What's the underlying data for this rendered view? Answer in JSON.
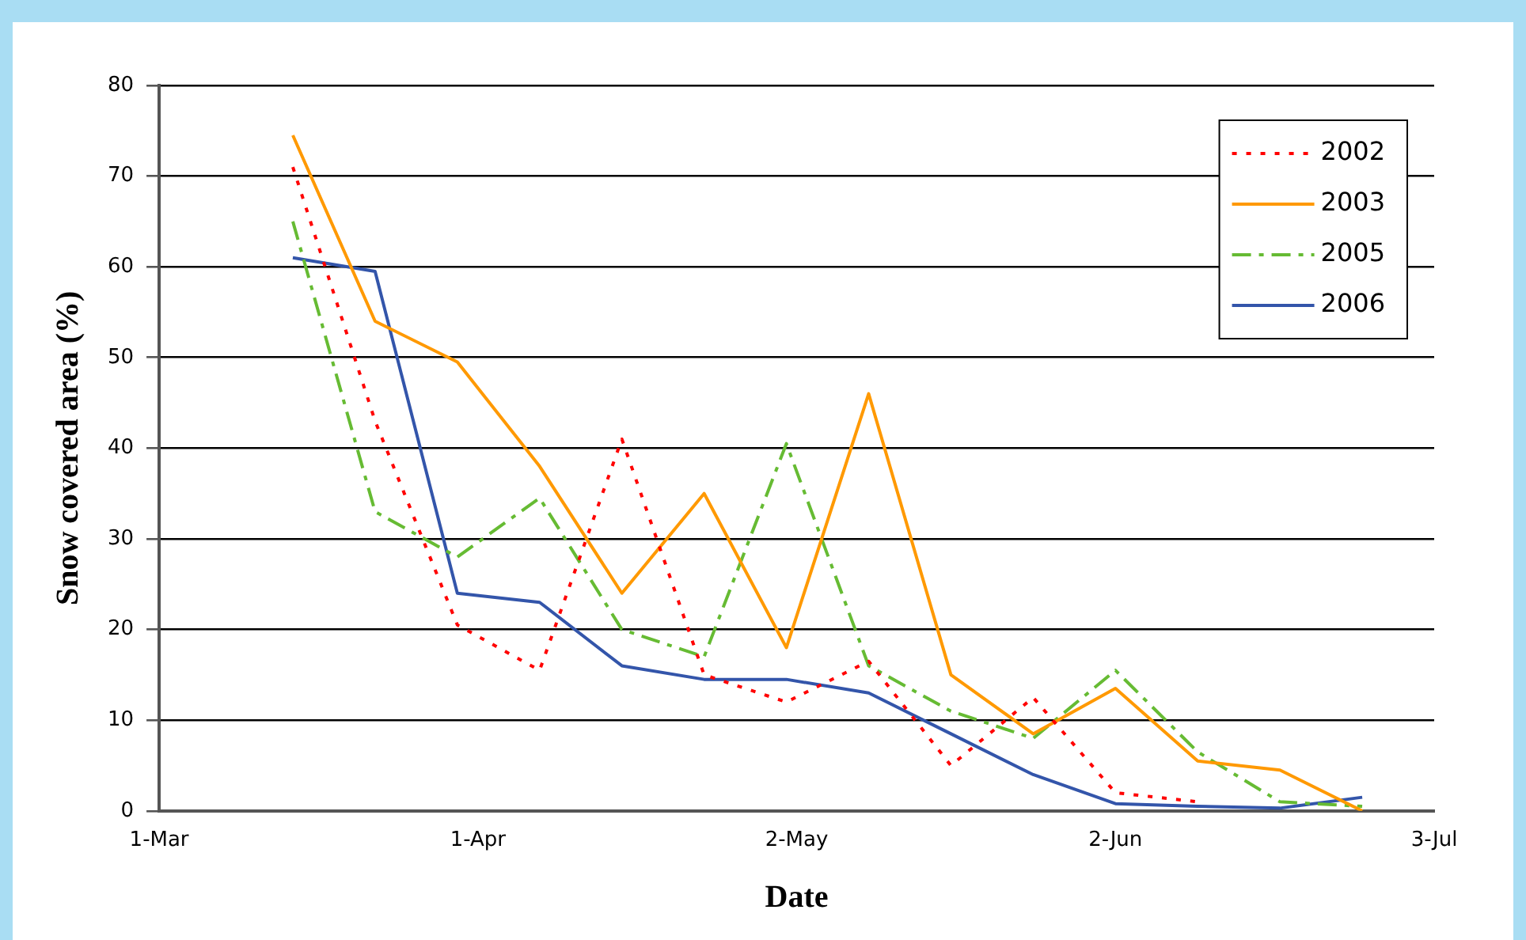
{
  "chart_data": {
    "type": "line",
    "xlabel": "Date",
    "ylabel": "Snow covered area (%)",
    "x": [
      "--03-14",
      "--03-22",
      "--03-30",
      "--04-07",
      "--04-15",
      "--04-23",
      "--05-01",
      "--05-09",
      "--05-17",
      "--05-25",
      "--06-02",
      "--06-10",
      "--06-18",
      "--06-26"
    ],
    "series": [
      {
        "name": "2002",
        "color": "#ff0000",
        "line_style": "dotted",
        "values": [
          71,
          43,
          20.5,
          15.5,
          41,
          15,
          12,
          16.5,
          5,
          12.5,
          2,
          1,
          null,
          null
        ]
      },
      {
        "name": "2003",
        "color": "#ff9900",
        "line_style": "solid",
        "values": [
          74.5,
          54,
          49.5,
          38,
          24,
          35,
          18,
          46,
          15,
          8.5,
          13.5,
          5.5,
          4.5,
          0
        ]
      },
      {
        "name": "2005",
        "color": "#66bb33",
        "line_style": "dashed",
        "values": [
          65,
          33,
          28,
          34.5,
          20,
          17,
          40.5,
          16,
          11,
          8,
          15.5,
          6.5,
          1,
          0.5
        ]
      },
      {
        "name": "2006",
        "color": "#3355aa",
        "line_style": "solid",
        "values": [
          61,
          59.5,
          24,
          23,
          16,
          14.5,
          14.5,
          13,
          8.5,
          4,
          0.8,
          0.5,
          0.3,
          1.5
        ]
      }
    ],
    "xlim": [
      "--03-01",
      "--07-03"
    ],
    "xticks": [
      {
        "value": "--03-01",
        "label": "1-Mar"
      },
      {
        "value": "--04-01",
        "label": "1-Apr"
      },
      {
        "value": "--05-02",
        "label": "2-May"
      },
      {
        "value": "--06-02",
        "label": "2-Jun"
      },
      {
        "value": "--07-03",
        "label": "3-Jul"
      }
    ],
    "ylim": [
      0,
      80
    ],
    "yticks": [
      0,
      10,
      20,
      30,
      40,
      50,
      60,
      70,
      80
    ],
    "grid": "y",
    "legend": "top right",
    "marker": "none"
  }
}
